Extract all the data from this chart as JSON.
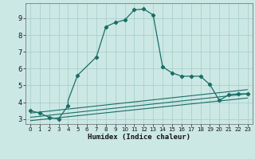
{
  "xlabel": "Humidex (Indice chaleur)",
  "bg_color": "#cce8e5",
  "grid_color": "#aacfcc",
  "line_color": "#1a6e66",
  "xlim": [
    -0.5,
    23.5
  ],
  "ylim": [
    2.7,
    9.9
  ],
  "xticks": [
    0,
    1,
    2,
    3,
    4,
    5,
    6,
    7,
    8,
    9,
    10,
    11,
    12,
    13,
    14,
    15,
    16,
    17,
    18,
    19,
    20,
    21,
    22,
    23
  ],
  "yticks": [
    3,
    4,
    5,
    6,
    7,
    8,
    9
  ],
  "curve1_x": [
    0,
    1,
    2,
    3,
    4,
    4,
    5,
    7,
    8,
    9,
    10,
    11,
    12,
    12,
    13,
    14,
    15,
    16,
    17,
    18,
    19,
    20,
    21,
    22,
    23
  ],
  "curve1_y": [
    3.5,
    3.35,
    3.1,
    3.0,
    3.8,
    4.1,
    5.6,
    6.7,
    8.5,
    8.75,
    8.9,
    9.5,
    9.55,
    9.55,
    9.2,
    6.1,
    5.75,
    5.55,
    5.55,
    5.55,
    5.05,
    4.1,
    4.45,
    4.5,
    4.5
  ],
  "line2_x": [
    0,
    23
  ],
  "line2_y": [
    3.35,
    4.75
  ],
  "line3_x": [
    0,
    23
  ],
  "line3_y": [
    3.1,
    4.5
  ],
  "line4_x": [
    0,
    23
  ],
  "line4_y": [
    2.9,
    4.25
  ],
  "markers_x": [
    0,
    1,
    2,
    3,
    4,
    5,
    7,
    8,
    9,
    10,
    11,
    12,
    13,
    14,
    15,
    16,
    17,
    18,
    19,
    20,
    21,
    22,
    23
  ],
  "markers_y": [
    3.5,
    3.35,
    3.1,
    3.0,
    3.8,
    5.6,
    6.7,
    8.5,
    8.75,
    8.9,
    9.5,
    9.55,
    9.2,
    6.1,
    5.75,
    5.55,
    5.55,
    5.55,
    5.05,
    4.1,
    4.45,
    4.5,
    4.5
  ]
}
